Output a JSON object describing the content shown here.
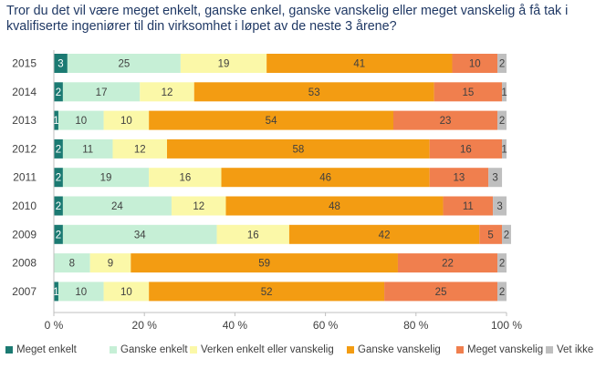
{
  "chart_data": {
    "type": "bar",
    "orientation": "horizontal",
    "stacked": true,
    "title": "Tror du det vil være meget enkelt, ganske enkel, ganske vanskelig eller meget vanskelig å få tak i kvalifiserte ingeniører til din virksomhet i løpet av de neste 3 årene?",
    "categories": [
      "2015",
      "2014",
      "2013",
      "2012",
      "2011",
      "2010",
      "2009",
      "2008",
      "2007"
    ],
    "xlim": [
      0,
      100
    ],
    "xticks": [
      "0 %",
      "20 %",
      "40 %",
      "60 %",
      "80 %",
      "100 %"
    ],
    "legend_position": "bottom",
    "series": [
      {
        "name": "Meget enkelt",
        "color": "#1b7a72",
        "label_color": "#ffffff",
        "values": [
          3,
          2,
          1,
          2,
          2,
          2,
          2,
          0,
          1
        ],
        "labels": [
          "3",
          "2",
          "1",
          "2",
          "2",
          "2",
          "2",
          "",
          "1"
        ]
      },
      {
        "name": "Ganske enkelt",
        "color": "#c6efd6",
        "label_color": "#404040",
        "values": [
          25,
          17,
          10,
          11,
          19,
          24,
          34,
          8,
          10
        ],
        "labels": [
          "25",
          "17",
          "10",
          "11",
          "19",
          "24",
          "34",
          "8",
          "10"
        ]
      },
      {
        "name": "Verken enkelt eller vanskelig",
        "color": "#fbf8a8",
        "label_color": "#404040",
        "values": [
          19,
          12,
          10,
          12,
          16,
          12,
          16,
          9,
          10
        ],
        "labels": [
          "19",
          "12",
          "10",
          "12",
          "16",
          "12",
          "16",
          "9",
          "10"
        ]
      },
      {
        "name": "Ganske vanskelig",
        "color": "#f39c12",
        "label_color": "#404040",
        "values": [
          41,
          53,
          54,
          58,
          46,
          48,
          42,
          59,
          52
        ],
        "labels": [
          "41",
          "53",
          "54",
          "58",
          "46",
          "48",
          "42",
          "59",
          "52"
        ]
      },
      {
        "name": "Meget vanskelig",
        "color": "#f07f4e",
        "label_color": "#404040",
        "values": [
          10,
          15,
          23,
          16,
          13,
          11,
          5,
          22,
          25
        ],
        "labels": [
          "10",
          "15",
          "23",
          "16",
          "13",
          "11",
          "5",
          "22",
          "25"
        ]
      },
      {
        "name": "Vet ikke",
        "color": "#bfbfbf",
        "label_color": "#404040",
        "values": [
          2,
          1,
          2,
          1,
          3,
          3,
          2,
          2,
          2
        ],
        "labels": [
          "2",
          "1",
          "2",
          "1",
          "3",
          "3",
          "2",
          "2",
          "2"
        ]
      }
    ]
  }
}
